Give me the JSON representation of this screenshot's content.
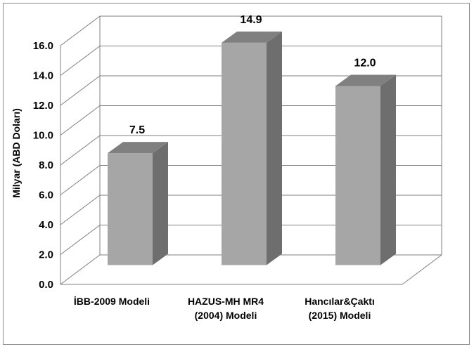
{
  "chart_data": {
    "type": "bar",
    "style": "3d-column",
    "categories": [
      [
        "İBB-2009 Modeli"
      ],
      [
        "HAZUS-MH MR4",
        "(2004) Modeli"
      ],
      [
        "Hancılar&Çaktı",
        "(2015) Modeli"
      ]
    ],
    "values": [
      7.5,
      14.9,
      12.0
    ],
    "data_labels": [
      "7.5",
      "14.9",
      "12.0"
    ],
    "ylabel": "Milyar (ABD Doları)",
    "xlabel": "",
    "title": "",
    "ylim": [
      0,
      16
    ],
    "yticks": [
      "0.0",
      "2.0",
      "4.0",
      "6.0",
      "8.0",
      "10.0",
      "12.0",
      "14.0",
      "16.0"
    ],
    "grid": true,
    "legend": "none",
    "colors": {
      "bar_front": "#a6a6a6",
      "bar_side": "#6e6e6e",
      "bar_top": "#808080",
      "grid": "#7f7f7f",
      "frame": "#8c8c8c"
    }
  }
}
